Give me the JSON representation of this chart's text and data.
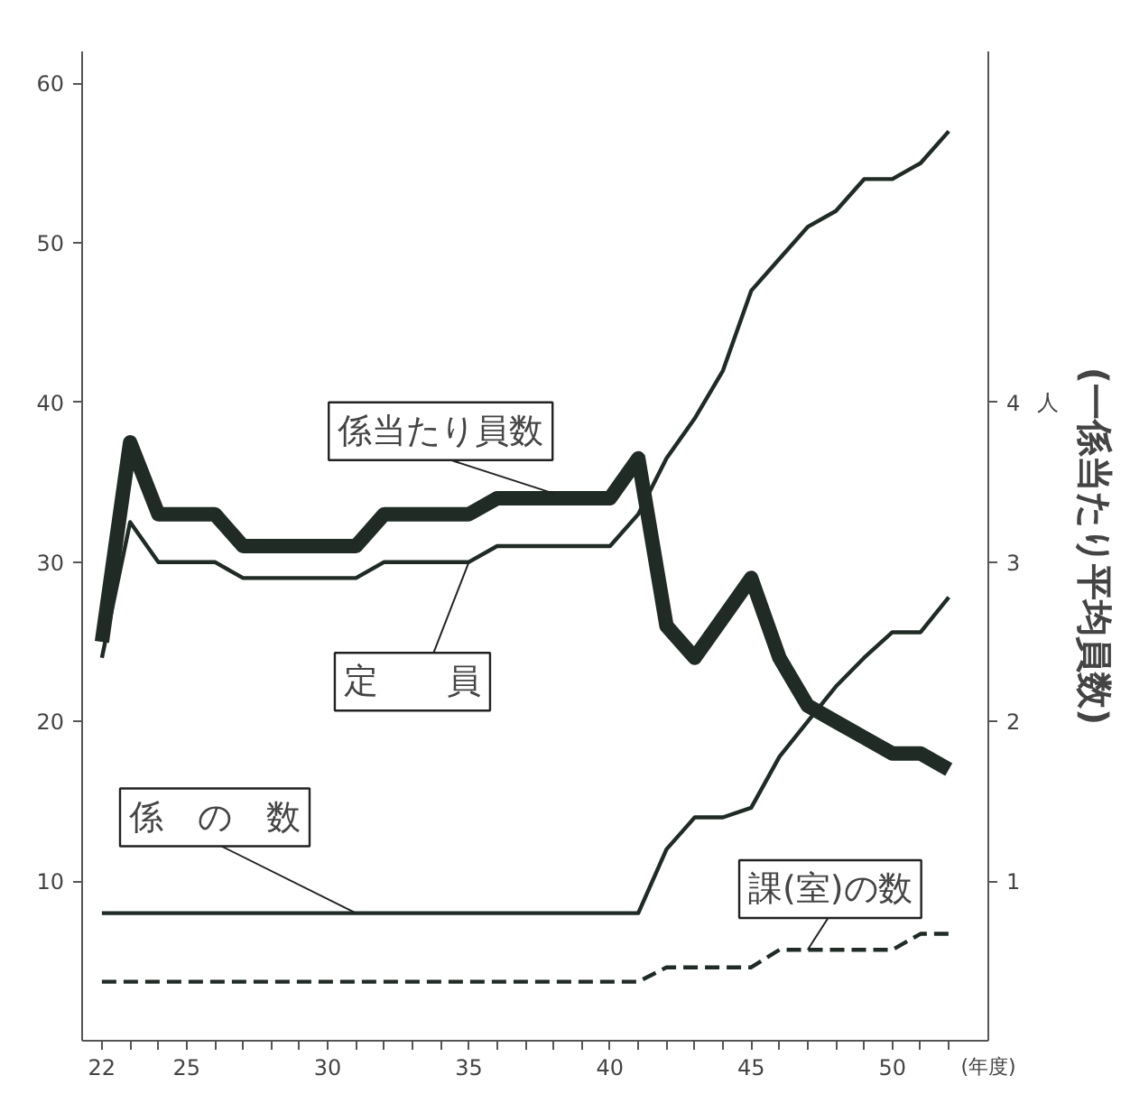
{
  "chart_data": {
    "type": "line",
    "xlabel": "(年度)",
    "y2label": "(一係当たり平均員数)",
    "annotations": [
      "人"
    ],
    "x": [
      22,
      23,
      24,
      25,
      26,
      27,
      28,
      29,
      30,
      31,
      32,
      33,
      34,
      35,
      36,
      37,
      38,
      39,
      40,
      41,
      42,
      43,
      44,
      45,
      46,
      47,
      48,
      49,
      50,
      51,
      52
    ],
    "xlim": [
      21.3,
      53.4
    ],
    "xticks": [
      22,
      {
        "value": 23,
        "label": null
      },
      {
        "value": 24,
        "label": null
      },
      25,
      {
        "value": 26,
        "label": null
      },
      {
        "value": 27,
        "label": null
      },
      {
        "value": 28,
        "label": null
      },
      {
        "value": 29,
        "label": null
      },
      30,
      {
        "value": 31,
        "label": null
      },
      {
        "value": 32,
        "label": null
      },
      {
        "value": 33,
        "label": null
      },
      {
        "value": 34,
        "label": null
      },
      35,
      {
        "value": 36,
        "label": null
      },
      {
        "value": 37,
        "label": null
      },
      {
        "value": 38,
        "label": null
      },
      {
        "value": 39,
        "label": null
      },
      40,
      {
        "value": 41,
        "label": null
      },
      {
        "value": 42,
        "label": null
      },
      {
        "value": 43,
        "label": null
      },
      {
        "value": 44,
        "label": null
      },
      45,
      {
        "value": 46,
        "label": null
      },
      {
        "value": 47,
        "label": null
      },
      {
        "value": 48,
        "label": null
      },
      {
        "value": 49,
        "label": null
      },
      50,
      {
        "value": 51,
        "label": null
      },
      {
        "value": 52,
        "label": null
      }
    ],
    "ylim": [
      0,
      62
    ],
    "yticks": [
      10,
      20,
      30,
      40,
      50,
      60
    ],
    "y2lim": [
      0,
      6.2
    ],
    "y2ticks": [
      1,
      2,
      3,
      4
    ],
    "grid": false,
    "marker": "none",
    "series": [
      {
        "name": "係当たり員数",
        "color": "#1f2b24",
        "axis": "y2",
        "values": [
          2.5,
          3.75,
          3.3,
          3.3,
          3.3,
          3.1,
          3.1,
          3.1,
          3.1,
          3.1,
          3.3,
          3.3,
          3.3,
          3.3,
          3.4,
          3.4,
          3.4,
          3.4,
          3.4,
          3.65,
          2.6,
          2.4,
          2.65,
          2.9,
          2.4,
          2.1,
          2.0,
          1.9,
          1.8,
          1.8,
          1.7
        ]
      },
      {
        "name": "定　　員",
        "color": "#1f2b24",
        "values": [
          24,
          32.5,
          30,
          30,
          30,
          29,
          29,
          29,
          29,
          29,
          30,
          30,
          30,
          30,
          31,
          31,
          31,
          31,
          31,
          33,
          36.5,
          39,
          42,
          47,
          49,
          51,
          52,
          54,
          54,
          55,
          57
        ]
      },
      {
        "name": "係　の　数",
        "color": "#1f2b24",
        "values": [
          8,
          8,
          8,
          8,
          8,
          8,
          8,
          8,
          8,
          8,
          8,
          8,
          8,
          8,
          8,
          8,
          8,
          8,
          8,
          8,
          12,
          14,
          14,
          14.6,
          17.8,
          20,
          22.2,
          24,
          25.6,
          25.6,
          27.8
        ]
      },
      {
        "name": "課(室)の数",
        "color": "#1f2b24",
        "line_style": "dashed",
        "values": [
          3.7,
          3.7,
          3.7,
          3.7,
          3.7,
          3.7,
          3.7,
          3.7,
          3.7,
          3.7,
          3.7,
          3.7,
          3.7,
          3.7,
          3.7,
          3.7,
          3.7,
          3.7,
          3.7,
          3.7,
          4.6,
          4.6,
          4.6,
          4.6,
          5.7,
          5.7,
          5.7,
          5.7,
          5.7,
          6.7,
          6.7
        ]
      }
    ]
  }
}
